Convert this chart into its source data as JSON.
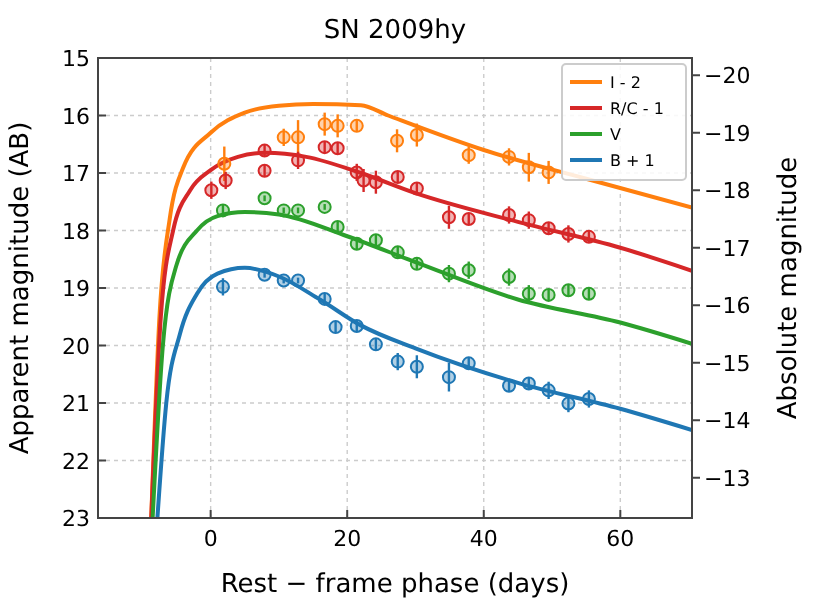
{
  "chart_data": {
    "type": "scatter",
    "title": "SN 2009hy",
    "xlabel": "Rest − frame phase (days)",
    "ylabel": "Apparent magnitude (AB)",
    "y2label": "Absolute magnitude",
    "xlim": [
      -16.5,
      70.5
    ],
    "xticks": [
      0,
      20,
      40,
      60
    ],
    "ylim": [
      23,
      15
    ],
    "yticks": [
      15,
      16,
      17,
      18,
      19,
      20,
      21,
      22,
      23
    ],
    "y2lim": [
      -12.3,
      -20.3
    ],
    "y2ticks": [
      {
        "value": -20,
        "label": "−20"
      },
      {
        "value": -19,
        "label": "−19"
      },
      {
        "value": -18,
        "label": "−18"
      },
      {
        "value": -17,
        "label": "−17"
      },
      {
        "value": -16,
        "label": "−16"
      },
      {
        "value": -15,
        "label": "−15"
      },
      {
        "value": -14,
        "label": "−14"
      },
      {
        "value": -13,
        "label": "−13"
      }
    ],
    "grid": true,
    "legend": "top right",
    "marker": "circle",
    "series": [
      {
        "type": "line",
        "name": "I - 2",
        "color": "#ff7f0e",
        "line_style": "solid",
        "marker": "none",
        "x": [
          -8.7,
          -7.5,
          -6,
          -4,
          0,
          5,
          10,
          15,
          22,
          26,
          40,
          55,
          70.5
        ],
        "values": [
          23,
          19.5,
          17.8,
          16.9,
          16.3,
          15.95,
          15.83,
          15.8,
          15.82,
          16.0,
          16.6,
          17.1,
          17.6
        ]
      },
      {
        "type": "line",
        "name": "R/C - 1",
        "color": "#d62728",
        "line_style": "solid",
        "marker": "none",
        "x": [
          -8.7,
          -7.3,
          -5.5,
          -3,
          0,
          4,
          8,
          14,
          22,
          30,
          45,
          60,
          70.5
        ],
        "values": [
          23,
          19.5,
          18,
          17.3,
          16.95,
          16.72,
          16.65,
          16.72,
          17.0,
          17.35,
          17.85,
          18.3,
          18.7
        ]
      },
      {
        "type": "line",
        "name": "V",
        "color": "#2ca02c",
        "line_style": "solid",
        "marker": "none",
        "x": [
          -8.5,
          -7,
          -5,
          -2,
          1,
          5,
          10,
          20,
          30,
          45,
          60,
          70.5
        ],
        "values": [
          23,
          20,
          18.6,
          18,
          17.75,
          17.68,
          17.72,
          18.1,
          18.55,
          19.2,
          19.6,
          19.97
        ]
      },
      {
        "type": "line",
        "name": "B + 1",
        "color": "#1f77b4",
        "line_style": "solid",
        "marker": "none",
        "x": [
          -7.8,
          -6.5,
          -4.5,
          -2,
          1,
          5,
          10,
          16,
          22,
          30,
          45,
          60,
          70.5
        ],
        "values": [
          23,
          21,
          19.8,
          19.1,
          18.75,
          18.65,
          18.8,
          19.2,
          19.65,
          20.05,
          20.65,
          21.1,
          21.47
        ]
      },
      {
        "color": "#ff7f0e",
        "x": [
          2.0,
          10.7,
          12.8,
          16.7,
          18.6,
          21.4,
          27.3,
          30.2,
          37.8,
          43.7,
          46.6,
          49.5
        ],
        "values": [
          16.84,
          16.38,
          16.38,
          16.15,
          16.18,
          16.18,
          16.44,
          16.34,
          16.69,
          16.72,
          16.9,
          16.99
        ],
        "errors": [
          0.3,
          0.15,
          0.3,
          0.2,
          0.2,
          0.1,
          0.2,
          0.2,
          0.15,
          0.15,
          0.25,
          0.2
        ]
      },
      {
        "color": "#d62728",
        "x": [
          0.1,
          2.2,
          7.9,
          7.9,
          12.8,
          16.7,
          18.6,
          21.4,
          22.4,
          24.2,
          27.4,
          30.2,
          34.9,
          37.8,
          43.7,
          46.6,
          49.5,
          52.4,
          55.4
        ],
        "values": [
          17.3,
          17.13,
          16.61,
          16.96,
          16.78,
          16.55,
          16.57,
          16.99,
          17.13,
          17.16,
          17.07,
          17.27,
          17.77,
          17.8,
          17.73,
          17.82,
          17.96,
          18.06,
          18.11
        ],
        "errors": [
          0.15,
          0.15,
          0.1,
          0.1,
          0.15,
          0.1,
          0.1,
          0.15,
          0.2,
          0.2,
          0.1,
          0.1,
          0.2,
          0.1,
          0.15,
          0.15,
          0.1,
          0.15,
          0.1
        ]
      },
      {
        "color": "#2ca02c",
        "x": [
          1.8,
          7.9,
          10.7,
          12.8,
          16.7,
          18.6,
          21.4,
          24.2,
          27.4,
          30.2,
          34.9,
          37.8,
          43.7,
          46.6,
          49.5,
          52.4,
          55.4
        ],
        "values": [
          17.65,
          17.44,
          17.65,
          17.65,
          17.59,
          17.94,
          18.23,
          18.17,
          18.38,
          18.58,
          18.75,
          18.69,
          18.81,
          19.1,
          19.12,
          19.04,
          19.1
        ],
        "errors": [
          0.1,
          0.05,
          0.05,
          0.05,
          0.05,
          0.1,
          0.1,
          0.1,
          0.1,
          0.1,
          0.15,
          0.15,
          0.15,
          0.15,
          0.1,
          0.1,
          0.1
        ]
      },
      {
        "color": "#1f77b4",
        "x": [
          1.8,
          7.9,
          10.7,
          12.8,
          16.7,
          18.3,
          21.4,
          24.2,
          27.4,
          30.2,
          34.9,
          37.8,
          43.7,
          46.6,
          49.5,
          52.4,
          55.4
        ],
        "values": [
          18.98,
          18.77,
          18.87,
          18.87,
          19.19,
          19.68,
          19.66,
          19.98,
          20.28,
          20.37,
          20.55,
          20.31,
          20.7,
          20.66,
          20.78,
          21.01,
          20.93
        ],
        "errors": [
          0.15,
          0.05,
          0.05,
          0.05,
          0.1,
          0.1,
          0.1,
          0.1,
          0.15,
          0.2,
          0.25,
          0.1,
          0.1,
          0.1,
          0.15,
          0.15,
          0.15
        ]
      }
    ]
  }
}
